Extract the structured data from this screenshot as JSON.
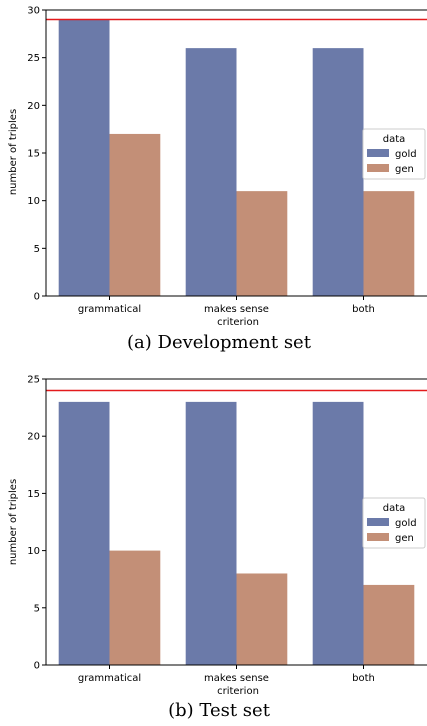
{
  "chart_data": [
    {
      "type": "bar",
      "caption": "(a) Development set",
      "xlabel": "criterion",
      "ylabel": "number of triples",
      "categories": [
        "grammatical",
        "makes sense",
        "both"
      ],
      "series": [
        {
          "name": "gold",
          "values": [
            29,
            26,
            26
          ],
          "color": "#6b7aa9"
        },
        {
          "name": "gen",
          "values": [
            17,
            11,
            11
          ],
          "color": "#c38f77"
        }
      ],
      "ylim": [
        0,
        30
      ],
      "yticks": [
        0,
        5,
        10,
        15,
        20,
        25,
        30
      ],
      "reference_line": {
        "value": 29,
        "color": "#e31a1c"
      },
      "legend": {
        "title": "data",
        "placement": "center-right"
      },
      "grid": false
    },
    {
      "type": "bar",
      "caption": "(b) Test set",
      "xlabel": "criterion",
      "ylabel": "number of triples",
      "categories": [
        "grammatical",
        "makes sense",
        "both"
      ],
      "series": [
        {
          "name": "gold",
          "values": [
            23,
            23,
            23
          ],
          "color": "#6b7aa9"
        },
        {
          "name": "gen",
          "values": [
            10,
            8,
            7
          ],
          "color": "#c38f77"
        }
      ],
      "ylim": [
        0,
        25
      ],
      "yticks": [
        0,
        5,
        10,
        15,
        20,
        25
      ],
      "reference_line": {
        "value": 24,
        "color": "#e31a1c"
      },
      "legend": {
        "title": "data",
        "placement": "center-right"
      },
      "grid": false
    }
  ]
}
